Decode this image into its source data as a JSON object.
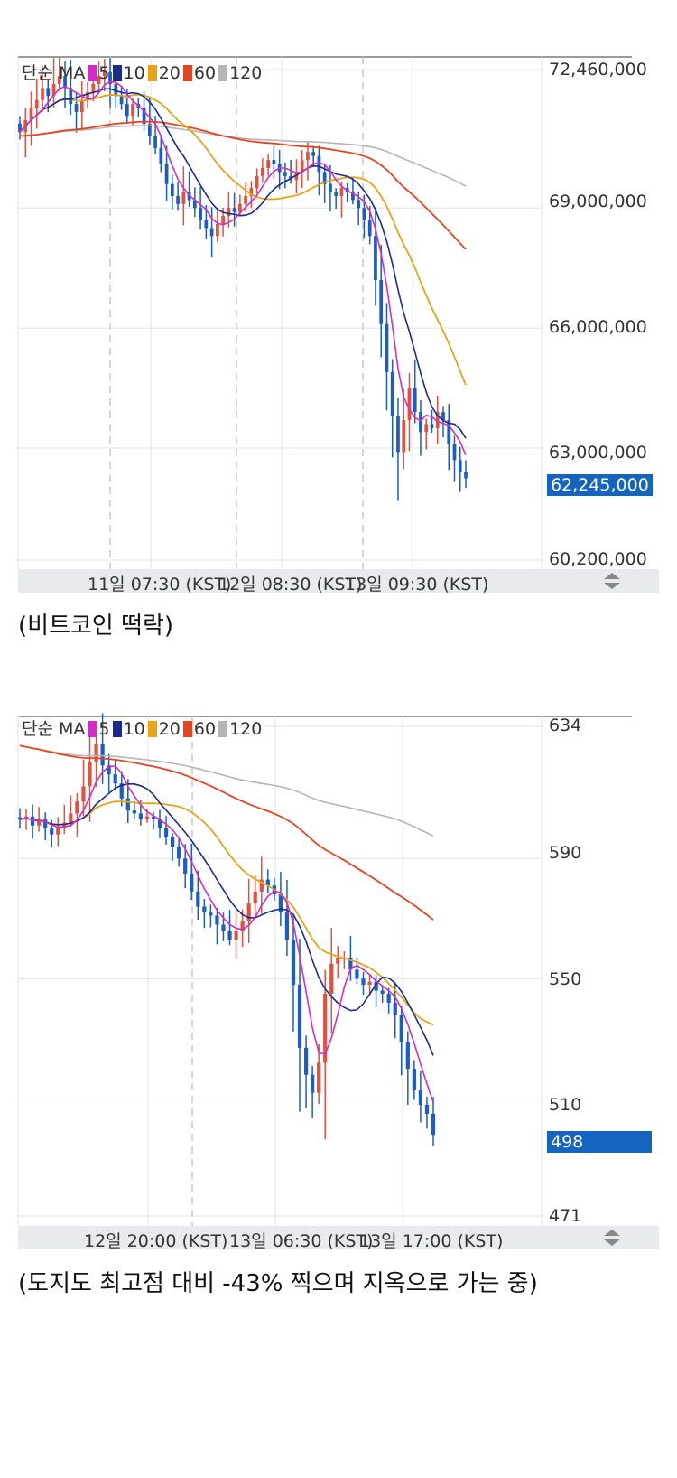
{
  "colors": {
    "up": "#e0523f",
    "down": "#1a5dc8",
    "ma5": "#d62bc5",
    "ma10": "#1b2a8f",
    "ma20": "#e8a317",
    "ma60": "#e8431f",
    "ma120": "#b5b5b5",
    "grid": "#e3e3e3",
    "badge": "#1565c0"
  },
  "chart1": {
    "legend": {
      "type_label": "단순",
      "ma_label": "MA",
      "periods": [
        "5",
        "10",
        "20",
        "60",
        "120"
      ]
    },
    "last_price_label": "62,245,000",
    "xbar_labels": [
      "11일 07:30 (KST)",
      "12일 08:30 (KST)",
      "13일 09:30 (KST)"
    ],
    "caption": "(비트코인 떡락)",
    "scroll_icon": "up-down-arrows-icon"
  },
  "chart2": {
    "legend": {
      "type_label": "단순",
      "ma_label": "MA",
      "periods": [
        "5",
        "10",
        "20",
        "60",
        "120"
      ]
    },
    "last_price_label": "498",
    "xbar_labels": [
      "12일 20:00 (KST)",
      "13일 06:30 (KST)",
      "13일 17:00 (KST)"
    ],
    "caption": "(도지도 최고점 대비 -43% 찍으며 지옥으로 가는 중)",
    "scroll_icon": "up-down-arrows-icon"
  },
  "chart_data": [
    {
      "type": "candlestick",
      "title": "",
      "ylim": [
        60200000,
        72460000
      ],
      "y_ticks": [
        {
          "value": 72460000,
          "label": "72,460,000"
        },
        {
          "value": 69000000,
          "label": "69,000,000"
        },
        {
          "value": 66000000,
          "label": "66,000,000"
        },
        {
          "value": 63000000,
          "label": "63,000,000"
        },
        {
          "value": 60200000,
          "label": "60,200,000"
        }
      ],
      "x_labels": [
        "11일 07:30 (KST)",
        "12일 08:30 (KST)",
        "13일 09:30 (KST)"
      ],
      "last_price": 62245000,
      "ohlc_close": [
        70900000,
        71200000,
        71500000,
        71700000,
        72000000,
        71800000,
        72100000,
        72300000,
        72000000,
        71600000,
        71400000,
        71700000,
        71900000,
        72100000,
        72300000,
        72400000,
        72100000,
        71800000,
        71600000,
        71300000,
        71600000,
        71500000,
        71100000,
        70800000,
        70500000,
        70100000,
        69600000,
        69300000,
        69100000,
        69400000,
        69200000,
        69000000,
        68700000,
        68500000,
        68300000,
        68600000,
        68800000,
        69000000,
        68900000,
        69100000,
        69300000,
        69500000,
        69800000,
        70000000,
        70200000,
        70100000,
        69900000,
        69800000,
        69700000,
        69900000,
        70200000,
        70400000,
        70300000,
        69900000,
        69600000,
        69400000,
        69300000,
        69500000,
        69400000,
        69200000,
        69000000,
        68700000,
        68300000,
        67200000,
        66100000,
        64900000,
        63800000,
        62900000,
        63700000,
        64500000,
        63900000,
        63400000,
        63600000,
        63500000,
        63900000,
        63700000,
        63100000,
        62700000,
        62400000,
        62245000
      ],
      "moving_averages": [
        "MA5",
        "MA10",
        "MA20",
        "MA60",
        "MA120"
      ]
    },
    {
      "type": "candlestick",
      "title": "",
      "ylim": [
        471,
        634
      ],
      "y_ticks": [
        {
          "value": 634,
          "label": "634"
        },
        {
          "value": 590,
          "label": "590"
        },
        {
          "value": 550,
          "label": "550"
        },
        {
          "value": 510,
          "label": "510"
        },
        {
          "value": 471,
          "label": "471"
        }
      ],
      "x_labels": [
        "12일 20:00 (KST)",
        "13일 06:30 (KST)",
        "13일 17:00 (KST)"
      ],
      "last_price": 498,
      "ohlc_close": [
        603,
        604,
        601,
        603,
        600,
        598,
        600,
        602,
        605,
        609,
        614,
        622,
        628,
        621,
        618,
        615,
        610,
        606,
        605,
        603,
        604,
        603,
        600,
        597,
        594,
        590,
        585,
        579,
        574,
        572,
        571,
        568,
        566,
        563,
        566,
        569,
        575,
        579,
        583,
        581,
        578,
        572,
        563,
        548,
        527,
        518,
        512,
        522,
        545,
        555,
        557,
        557,
        553,
        550,
        548,
        549,
        546,
        545,
        542,
        538,
        529,
        520,
        513,
        508,
        505,
        498
      ],
      "moving_averages": [
        "MA5",
        "MA10",
        "MA20",
        "MA60",
        "MA120"
      ]
    }
  ]
}
